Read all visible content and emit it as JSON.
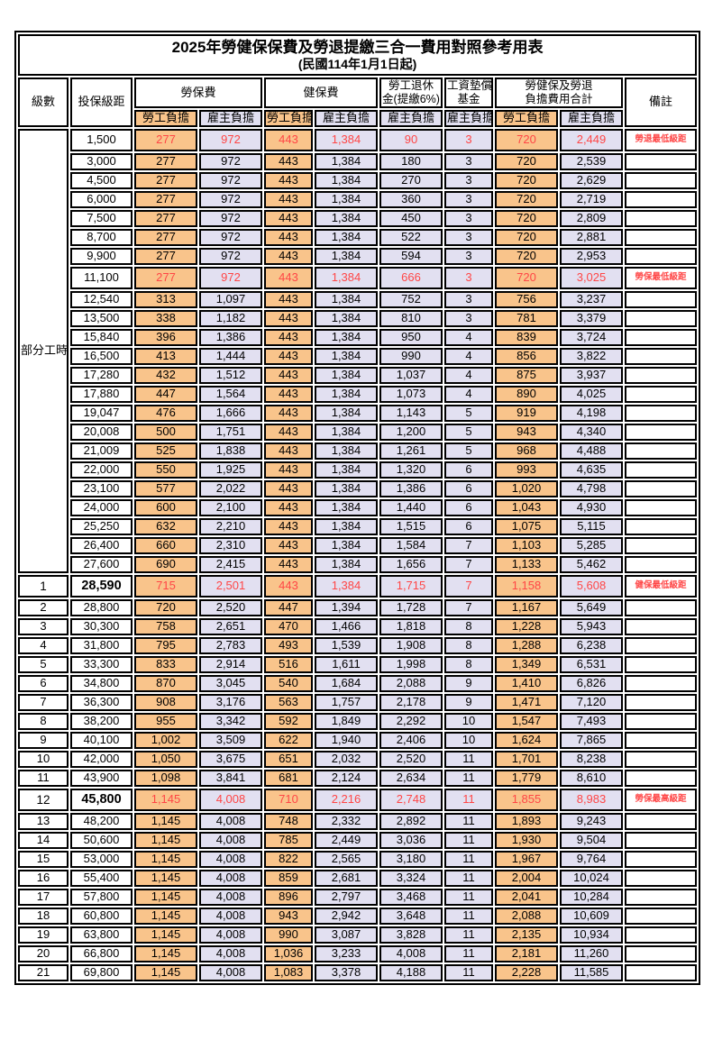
{
  "title": "2025年勞健保保費及勞退提繳三合一費用對照參考用表",
  "subtitle": "(民國114年1月1日起)",
  "colors": {
    "employee_column_fill": "#f9c48b",
    "employer_column_fill": "#e2e0f1",
    "highlight_text": "#ff4646",
    "border": "#000000",
    "background": "#ffffff"
  },
  "header": {
    "level": "級數",
    "bracket": "投保級距",
    "labor_insurance": "勞保費",
    "health_insurance": "健保費",
    "pension_line1": "勞工退休",
    "pension_line2": "金(提繳6%)",
    "wage_fund_line1": "工資墊償",
    "wage_fund_line2": "基金",
    "total_line1": "勞健保及勞退",
    "total_line2": "負擔費用合計",
    "remark": "備註",
    "employee_share": "勞工負擔",
    "employer_share": "雇主負擔"
  },
  "part_time_label": "部分工時",
  "part_time_rowspan": 23,
  "column_kinds": [
    "emp",
    "er",
    "emp",
    "er",
    "er",
    "er",
    "emp",
    "er"
  ],
  "rows": [
    {
      "level": "",
      "bracket": "1,500",
      "cells": [
        "277",
        "972",
        "443",
        "1,384",
        "90",
        "3",
        "720",
        "2,449"
      ],
      "remark": "勞退最低級距",
      "red": true,
      "tall": true,
      "emph": false
    },
    {
      "level": "",
      "bracket": "3,000",
      "cells": [
        "277",
        "972",
        "443",
        "1,384",
        "180",
        "3",
        "720",
        "2,539"
      ],
      "remark": "",
      "red": false,
      "tall": false,
      "emph": false
    },
    {
      "level": "",
      "bracket": "4,500",
      "cells": [
        "277",
        "972",
        "443",
        "1,384",
        "270",
        "3",
        "720",
        "2,629"
      ],
      "remark": "",
      "red": false,
      "tall": false,
      "emph": false
    },
    {
      "level": "",
      "bracket": "6,000",
      "cells": [
        "277",
        "972",
        "443",
        "1,384",
        "360",
        "3",
        "720",
        "2,719"
      ],
      "remark": "",
      "red": false,
      "tall": false,
      "emph": false
    },
    {
      "level": "",
      "bracket": "7,500",
      "cells": [
        "277",
        "972",
        "443",
        "1,384",
        "450",
        "3",
        "720",
        "2,809"
      ],
      "remark": "",
      "red": false,
      "tall": false,
      "emph": false
    },
    {
      "level": "",
      "bracket": "8,700",
      "cells": [
        "277",
        "972",
        "443",
        "1,384",
        "522",
        "3",
        "720",
        "2,881"
      ],
      "remark": "",
      "red": false,
      "tall": false,
      "emph": false
    },
    {
      "level": "",
      "bracket": "9,900",
      "cells": [
        "277",
        "972",
        "443",
        "1,384",
        "594",
        "3",
        "720",
        "2,953"
      ],
      "remark": "",
      "red": false,
      "tall": false,
      "emph": false
    },
    {
      "level": "",
      "bracket": "11,100",
      "cells": [
        "277",
        "972",
        "443",
        "1,384",
        "666",
        "3",
        "720",
        "3,025"
      ],
      "remark": "勞保最低級距",
      "red": true,
      "tall": true,
      "emph": false
    },
    {
      "level": "",
      "bracket": "12,540",
      "cells": [
        "313",
        "1,097",
        "443",
        "1,384",
        "752",
        "3",
        "756",
        "3,237"
      ],
      "remark": "",
      "red": false,
      "tall": false,
      "emph": false
    },
    {
      "level": "",
      "bracket": "13,500",
      "cells": [
        "338",
        "1,182",
        "443",
        "1,384",
        "810",
        "3",
        "781",
        "3,379"
      ],
      "remark": "",
      "red": false,
      "tall": false,
      "emph": false
    },
    {
      "level": "",
      "bracket": "15,840",
      "cells": [
        "396",
        "1,386",
        "443",
        "1,384",
        "950",
        "4",
        "839",
        "3,724"
      ],
      "remark": "",
      "red": false,
      "tall": false,
      "emph": false
    },
    {
      "level": "",
      "bracket": "16,500",
      "cells": [
        "413",
        "1,444",
        "443",
        "1,384",
        "990",
        "4",
        "856",
        "3,822"
      ],
      "remark": "",
      "red": false,
      "tall": false,
      "emph": false
    },
    {
      "level": "",
      "bracket": "17,280",
      "cells": [
        "432",
        "1,512",
        "443",
        "1,384",
        "1,037",
        "4",
        "875",
        "3,937"
      ],
      "remark": "",
      "red": false,
      "tall": false,
      "emph": false
    },
    {
      "level": "",
      "bracket": "17,880",
      "cells": [
        "447",
        "1,564",
        "443",
        "1,384",
        "1,073",
        "4",
        "890",
        "4,025"
      ],
      "remark": "",
      "red": false,
      "tall": false,
      "emph": false
    },
    {
      "level": "",
      "bracket": "19,047",
      "cells": [
        "476",
        "1,666",
        "443",
        "1,384",
        "1,143",
        "5",
        "919",
        "4,198"
      ],
      "remark": "",
      "red": false,
      "tall": false,
      "emph": false
    },
    {
      "level": "",
      "bracket": "20,008",
      "cells": [
        "500",
        "1,751",
        "443",
        "1,384",
        "1,200",
        "5",
        "943",
        "4,340"
      ],
      "remark": "",
      "red": false,
      "tall": false,
      "emph": false
    },
    {
      "level": "",
      "bracket": "21,009",
      "cells": [
        "525",
        "1,838",
        "443",
        "1,384",
        "1,261",
        "5",
        "968",
        "4,488"
      ],
      "remark": "",
      "red": false,
      "tall": false,
      "emph": false
    },
    {
      "level": "",
      "bracket": "22,000",
      "cells": [
        "550",
        "1,925",
        "443",
        "1,384",
        "1,320",
        "6",
        "993",
        "4,635"
      ],
      "remark": "",
      "red": false,
      "tall": false,
      "emph": false
    },
    {
      "level": "",
      "bracket": "23,100",
      "cells": [
        "577",
        "2,022",
        "443",
        "1,384",
        "1,386",
        "6",
        "1,020",
        "4,798"
      ],
      "remark": "",
      "red": false,
      "tall": false,
      "emph": false
    },
    {
      "level": "",
      "bracket": "24,000",
      "cells": [
        "600",
        "2,100",
        "443",
        "1,384",
        "1,440",
        "6",
        "1,043",
        "4,930"
      ],
      "remark": "",
      "red": false,
      "tall": false,
      "emph": false
    },
    {
      "level": "",
      "bracket": "25,250",
      "cells": [
        "632",
        "2,210",
        "443",
        "1,384",
        "1,515",
        "6",
        "1,075",
        "5,115"
      ],
      "remark": "",
      "red": false,
      "tall": false,
      "emph": false
    },
    {
      "level": "",
      "bracket": "26,400",
      "cells": [
        "660",
        "2,310",
        "443",
        "1,384",
        "1,584",
        "7",
        "1,103",
        "5,285"
      ],
      "remark": "",
      "red": false,
      "tall": false,
      "emph": false
    },
    {
      "level": "",
      "bracket": "27,600",
      "cells": [
        "690",
        "2,415",
        "443",
        "1,384",
        "1,656",
        "7",
        "1,133",
        "5,462"
      ],
      "remark": "",
      "red": false,
      "tall": false,
      "emph": false
    },
    {
      "level": "1",
      "bracket": "28,590",
      "cells": [
        "715",
        "2,501",
        "443",
        "1,384",
        "1,715",
        "7",
        "1,158",
        "5,608"
      ],
      "remark": "健保最低級距",
      "red": true,
      "tall": true,
      "emph": true
    },
    {
      "level": "2",
      "bracket": "28,800",
      "cells": [
        "720",
        "2,520",
        "447",
        "1,394",
        "1,728",
        "7",
        "1,167",
        "5,649"
      ],
      "remark": "",
      "red": false,
      "tall": false,
      "emph": false
    },
    {
      "level": "3",
      "bracket": "30,300",
      "cells": [
        "758",
        "2,651",
        "470",
        "1,466",
        "1,818",
        "8",
        "1,228",
        "5,943"
      ],
      "remark": "",
      "red": false,
      "tall": false,
      "emph": false
    },
    {
      "level": "4",
      "bracket": "31,800",
      "cells": [
        "795",
        "2,783",
        "493",
        "1,539",
        "1,908",
        "8",
        "1,288",
        "6,238"
      ],
      "remark": "",
      "red": false,
      "tall": false,
      "emph": false
    },
    {
      "level": "5",
      "bracket": "33,300",
      "cells": [
        "833",
        "2,914",
        "516",
        "1,611",
        "1,998",
        "8",
        "1,349",
        "6,531"
      ],
      "remark": "",
      "red": false,
      "tall": false,
      "emph": false
    },
    {
      "level": "6",
      "bracket": "34,800",
      "cells": [
        "870",
        "3,045",
        "540",
        "1,684",
        "2,088",
        "9",
        "1,410",
        "6,826"
      ],
      "remark": "",
      "red": false,
      "tall": false,
      "emph": false
    },
    {
      "level": "7",
      "bracket": "36,300",
      "cells": [
        "908",
        "3,176",
        "563",
        "1,757",
        "2,178",
        "9",
        "1,471",
        "7,120"
      ],
      "remark": "",
      "red": false,
      "tall": false,
      "emph": false
    },
    {
      "level": "8",
      "bracket": "38,200",
      "cells": [
        "955",
        "3,342",
        "592",
        "1,849",
        "2,292",
        "10",
        "1,547",
        "7,493"
      ],
      "remark": "",
      "red": false,
      "tall": false,
      "emph": false
    },
    {
      "level": "9",
      "bracket": "40,100",
      "cells": [
        "1,002",
        "3,509",
        "622",
        "1,940",
        "2,406",
        "10",
        "1,624",
        "7,865"
      ],
      "remark": "",
      "red": false,
      "tall": false,
      "emph": false
    },
    {
      "level": "10",
      "bracket": "42,000",
      "cells": [
        "1,050",
        "3,675",
        "651",
        "2,032",
        "2,520",
        "11",
        "1,701",
        "8,238"
      ],
      "remark": "",
      "red": false,
      "tall": false,
      "emph": false
    },
    {
      "level": "11",
      "bracket": "43,900",
      "cells": [
        "1,098",
        "3,841",
        "681",
        "2,124",
        "2,634",
        "11",
        "1,779",
        "8,610"
      ],
      "remark": "",
      "red": false,
      "tall": false,
      "emph": false
    },
    {
      "level": "12",
      "bracket": "45,800",
      "cells": [
        "1,145",
        "4,008",
        "710",
        "2,216",
        "2,748",
        "11",
        "1,855",
        "8,983"
      ],
      "remark": "勞保最高級距",
      "red": true,
      "tall": true,
      "emph": true
    },
    {
      "level": "13",
      "bracket": "48,200",
      "cells": [
        "1,145",
        "4,008",
        "748",
        "2,332",
        "2,892",
        "11",
        "1,893",
        "9,243"
      ],
      "remark": "",
      "red": false,
      "tall": false,
      "emph": false
    },
    {
      "level": "14",
      "bracket": "50,600",
      "cells": [
        "1,145",
        "4,008",
        "785",
        "2,449",
        "3,036",
        "11",
        "1,930",
        "9,504"
      ],
      "remark": "",
      "red": false,
      "tall": false,
      "emph": false
    },
    {
      "level": "15",
      "bracket": "53,000",
      "cells": [
        "1,145",
        "4,008",
        "822",
        "2,565",
        "3,180",
        "11",
        "1,967",
        "9,764"
      ],
      "remark": "",
      "red": false,
      "tall": false,
      "emph": false
    },
    {
      "level": "16",
      "bracket": "55,400",
      "cells": [
        "1,145",
        "4,008",
        "859",
        "2,681",
        "3,324",
        "11",
        "2,004",
        "10,024"
      ],
      "remark": "",
      "red": false,
      "tall": false,
      "emph": false
    },
    {
      "level": "17",
      "bracket": "57,800",
      "cells": [
        "1,145",
        "4,008",
        "896",
        "2,797",
        "3,468",
        "11",
        "2,041",
        "10,284"
      ],
      "remark": "",
      "red": false,
      "tall": false,
      "emph": false
    },
    {
      "level": "18",
      "bracket": "60,800",
      "cells": [
        "1,145",
        "4,008",
        "943",
        "2,942",
        "3,648",
        "11",
        "2,088",
        "10,609"
      ],
      "remark": "",
      "red": false,
      "tall": false,
      "emph": false
    },
    {
      "level": "19",
      "bracket": "63,800",
      "cells": [
        "1,145",
        "4,008",
        "990",
        "3,087",
        "3,828",
        "11",
        "2,135",
        "10,934"
      ],
      "remark": "",
      "red": false,
      "tall": false,
      "emph": false
    },
    {
      "level": "20",
      "bracket": "66,800",
      "cells": [
        "1,145",
        "4,008",
        "1,036",
        "3,233",
        "4,008",
        "11",
        "2,181",
        "11,260"
      ],
      "remark": "",
      "red": false,
      "tall": false,
      "emph": false
    },
    {
      "level": "21",
      "bracket": "69,800",
      "cells": [
        "1,145",
        "4,008",
        "1,083",
        "3,378",
        "4,188",
        "11",
        "2,228",
        "11,585"
      ],
      "remark": "",
      "red": false,
      "tall": false,
      "emph": false
    }
  ]
}
